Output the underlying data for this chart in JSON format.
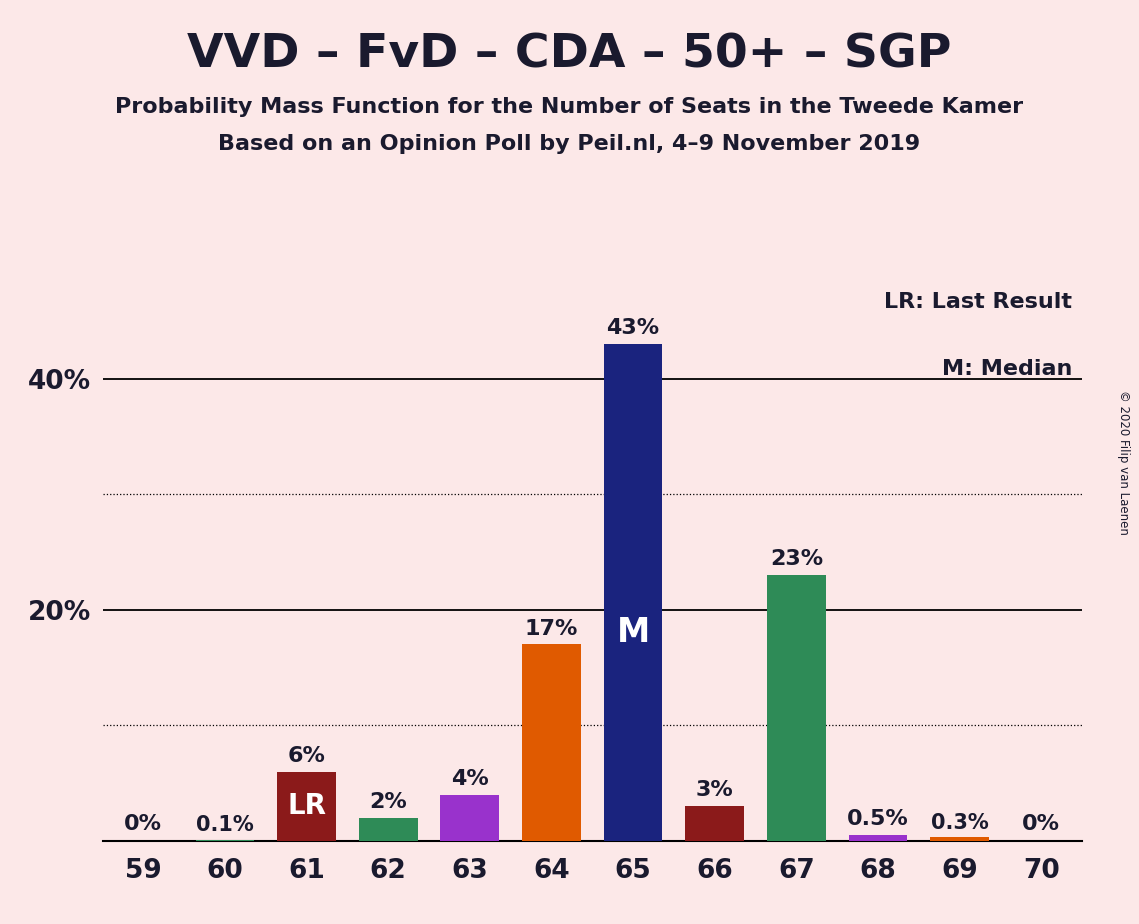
{
  "title": "VVD – FvD – CDA – 50+ – SGP",
  "subtitle1": "Probability Mass Function for the Number of Seats in the Tweede Kamer",
  "subtitle2": "Based on an Opinion Poll by Peil.nl, 4–9 November 2019",
  "copyright": "© 2020 Filip van Laenen",
  "legend_lr": "LR: Last Result",
  "legend_m": "M: Median",
  "background_color": "#fce8e8",
  "categories": [
    59,
    60,
    61,
    62,
    63,
    64,
    65,
    66,
    67,
    68,
    69,
    70
  ],
  "values": [
    0.0,
    0.1,
    6.0,
    2.0,
    4.0,
    17.0,
    43.0,
    3.0,
    23.0,
    0.5,
    0.3,
    0.0
  ],
  "labels": [
    "0%",
    "0.1%",
    "6%",
    "2%",
    "4%",
    "17%",
    "43%",
    "3%",
    "23%",
    "0.5%",
    "0.3%",
    "0%"
  ],
  "bar_colors": [
    "#fce8e8",
    "#2e8b57",
    "#8b1a1a",
    "#2e8b57",
    "#9932cc",
    "#e05a00",
    "#1a237e",
    "#8b1a1a",
    "#2e8b57",
    "#9932cc",
    "#e05a00",
    "#fce8e8"
  ],
  "median_bar_idx": 6,
  "lr_bar_idx": 2,
  "ylim": [
    0,
    48
  ],
  "solid_grid": [
    20,
    40
  ],
  "dotted_grid": [
    10,
    30
  ],
  "title_color": "#1a1a2e",
  "bar_width": 0.72,
  "title_fontsize": 34,
  "subtitle_fontsize": 16,
  "tick_fontsize": 19,
  "label_fontsize": 16,
  "legend_fontsize": 16
}
